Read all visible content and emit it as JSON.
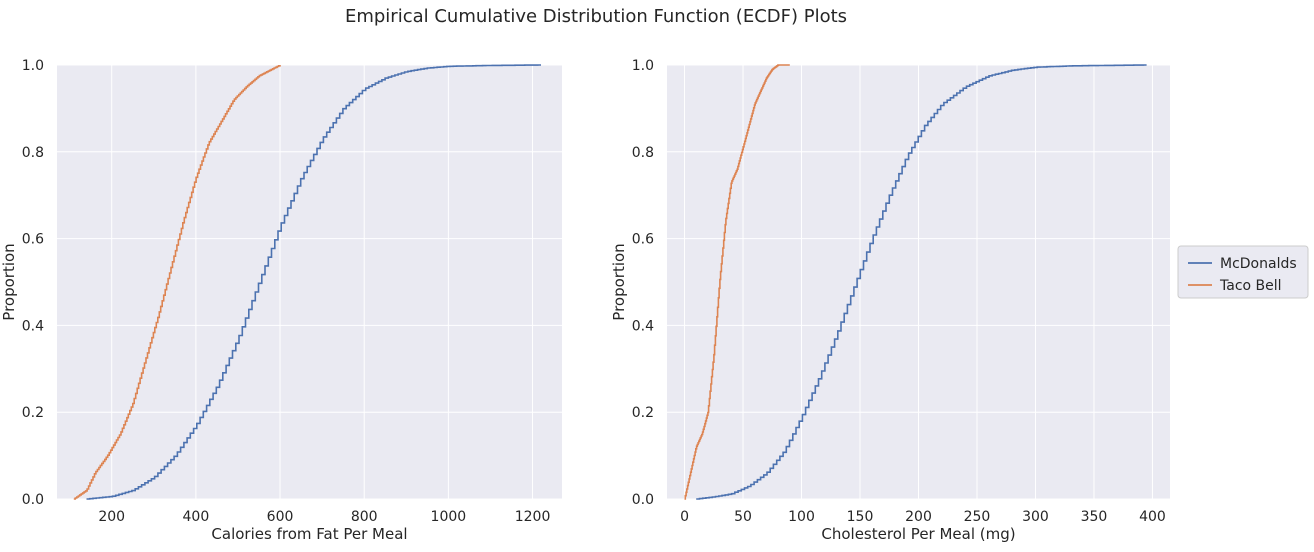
{
  "title": "Empirical Cumulative Distribution Function (ECDF) Plots",
  "colors": {
    "mcdonalds": "#4c72b0",
    "taco_bell": "#dd8452",
    "panel_bg": "#eaeaf2",
    "grid": "#ffffff"
  },
  "legend": {
    "placement": "right-center",
    "entries": [
      "McDonalds",
      "Taco Bell"
    ]
  },
  "chart_data": [
    {
      "type": "line",
      "subtype": "ecdf-step",
      "xlabel": "Calories from Fat Per Meal",
      "ylabel": "Proportion",
      "xlim": [
        70,
        1270
      ],
      "ylim": [
        0,
        1
      ],
      "xticks": [
        "200",
        "400",
        "600",
        "800",
        "1000",
        "1200"
      ],
      "yticks": [
        "0.0",
        "0.2",
        "0.4",
        "0.6",
        "0.8",
        "1.0"
      ],
      "grid": true,
      "series": [
        {
          "name": "McDonalds",
          "x": [
            140,
            200,
            250,
            300,
            350,
            400,
            450,
            500,
            550,
            600,
            650,
            700,
            750,
            800,
            850,
            900,
            950,
            1000,
            1100,
            1220
          ],
          "y": [
            0.0,
            0.006,
            0.02,
            0.05,
            0.1,
            0.17,
            0.26,
            0.37,
            0.5,
            0.63,
            0.74,
            0.83,
            0.9,
            0.945,
            0.97,
            0.985,
            0.993,
            0.997,
            0.999,
            1.0
          ]
        },
        {
          "name": "Taco Bell",
          "x": [
            110,
            140,
            160,
            190,
            220,
            250,
            280,
            310,
            340,
            370,
            400,
            430,
            460,
            490,
            520,
            550,
            580,
            600
          ],
          "y": [
            0.0,
            0.02,
            0.06,
            0.1,
            0.15,
            0.22,
            0.32,
            0.42,
            0.53,
            0.64,
            0.74,
            0.82,
            0.87,
            0.92,
            0.95,
            0.975,
            0.99,
            1.0
          ]
        }
      ]
    },
    {
      "type": "line",
      "subtype": "ecdf-step",
      "xlabel": "Cholesterol Per Meal (mg)",
      "ylabel": "Proportion",
      "xlim": [
        -15,
        415
      ],
      "ylim": [
        0,
        1
      ],
      "xticks": [
        "0",
        "50",
        "100",
        "150",
        "200",
        "250",
        "300",
        "350",
        "400"
      ],
      "yticks": [
        "0.0",
        "0.2",
        "0.4",
        "0.6",
        "0.8",
        "1.0"
      ],
      "grid": true,
      "series": [
        {
          "name": "McDonalds",
          "x": [
            10,
            25,
            40,
            55,
            70,
            85,
            100,
            115,
            130,
            145,
            160,
            175,
            190,
            205,
            220,
            240,
            260,
            280,
            300,
            330,
            360,
            395
          ],
          "y": [
            0.0,
            0.005,
            0.012,
            0.03,
            0.06,
            0.11,
            0.19,
            0.28,
            0.38,
            0.49,
            0.6,
            0.7,
            0.79,
            0.86,
            0.91,
            0.95,
            0.975,
            0.988,
            0.995,
            0.998,
            0.999,
            1.0
          ]
        },
        {
          "name": "Taco Bell",
          "x": [
            0,
            5,
            10,
            15,
            20,
            25,
            30,
            35,
            40,
            45,
            50,
            55,
            60,
            65,
            70,
            75,
            80,
            90
          ],
          "y": [
            0.0,
            0.06,
            0.12,
            0.15,
            0.2,
            0.33,
            0.5,
            0.64,
            0.73,
            0.76,
            0.81,
            0.86,
            0.91,
            0.94,
            0.97,
            0.99,
            1.0,
            1.0
          ]
        }
      ]
    }
  ]
}
